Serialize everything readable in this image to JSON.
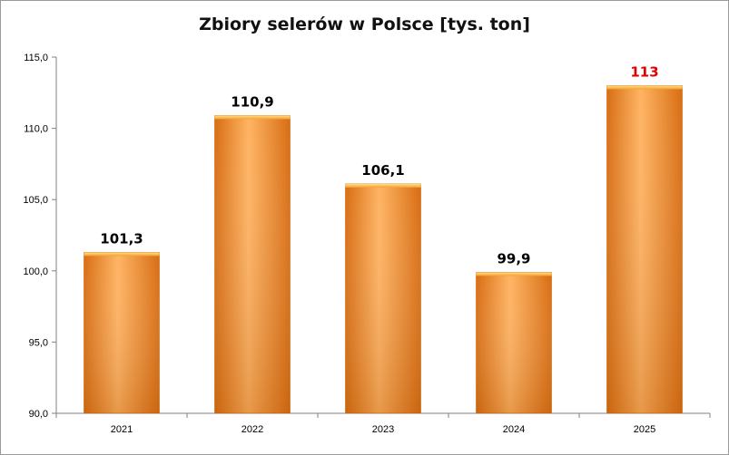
{
  "chart_data": {
    "type": "bar",
    "title": "Zbiory selerów w Polsce [tys. ton]",
    "xlabel": "",
    "ylabel": "",
    "categories": [
      "2021",
      "2022",
      "2023",
      "2024",
      "2025"
    ],
    "values": [
      101.3,
      110.9,
      106.1,
      99.9,
      113
    ],
    "data_labels": [
      "101,3",
      "110,9",
      "106,1",
      "99,9",
      "113"
    ],
    "ylim": [
      90,
      115
    ],
    "yticks": [
      90,
      95,
      100,
      105,
      110,
      115
    ],
    "ytick_labels": [
      "90,0",
      "95,0",
      "100,0",
      "105,0",
      "110,0",
      "115,0"
    ],
    "grid": false,
    "legend": "none",
    "colors": {
      "bar": "#f7922a",
      "bar_light": "#ffb463",
      "bar_dark": "#d86d12",
      "label_default": "#000000",
      "label_highlight": "#e00000"
    },
    "highlight_index": 4
  }
}
